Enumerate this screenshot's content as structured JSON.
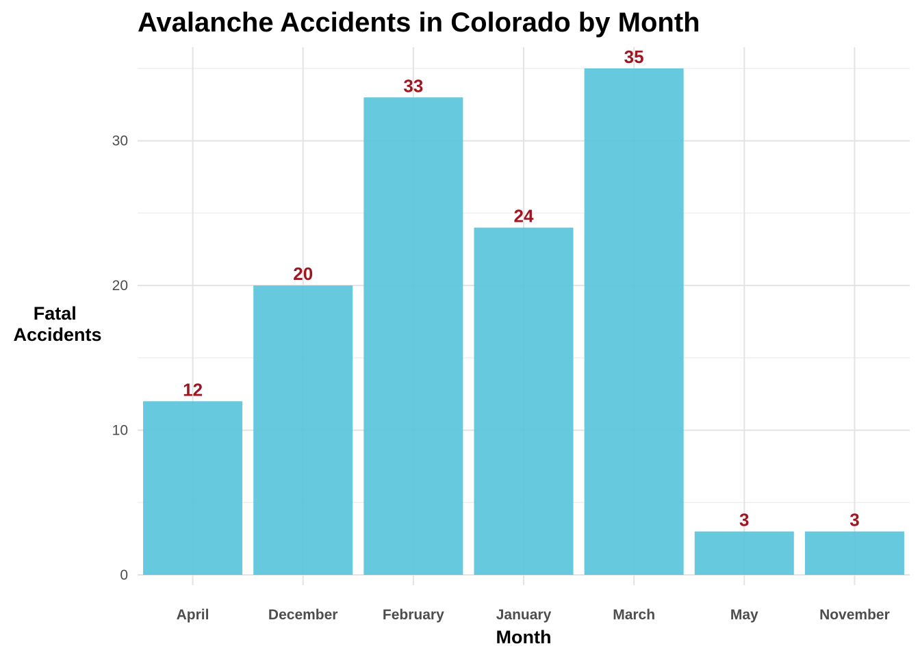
{
  "chart_data": {
    "type": "bar",
    "title": "Avalanche Accidents in Colorado by Month",
    "xlabel": "Month",
    "ylabel": [
      "Fatal",
      "Accidents"
    ],
    "categories": [
      "April",
      "December",
      "February",
      "January",
      "March",
      "May",
      "November"
    ],
    "values": [
      12,
      20,
      33,
      24,
      35,
      3,
      3
    ],
    "data_labels": [
      "12",
      "20",
      "33",
      "24",
      "35",
      "3",
      "3"
    ],
    "y_ticks": [
      0,
      10,
      20,
      30
    ],
    "y_tick_labels": [
      "0",
      "10",
      "20",
      "30"
    ],
    "ylim": [
      0,
      36.75
    ],
    "grid": true,
    "legend": "none",
    "colors": {
      "bar": "#5bc5da",
      "data_label": "#a01520",
      "background": "#ffffff"
    }
  }
}
